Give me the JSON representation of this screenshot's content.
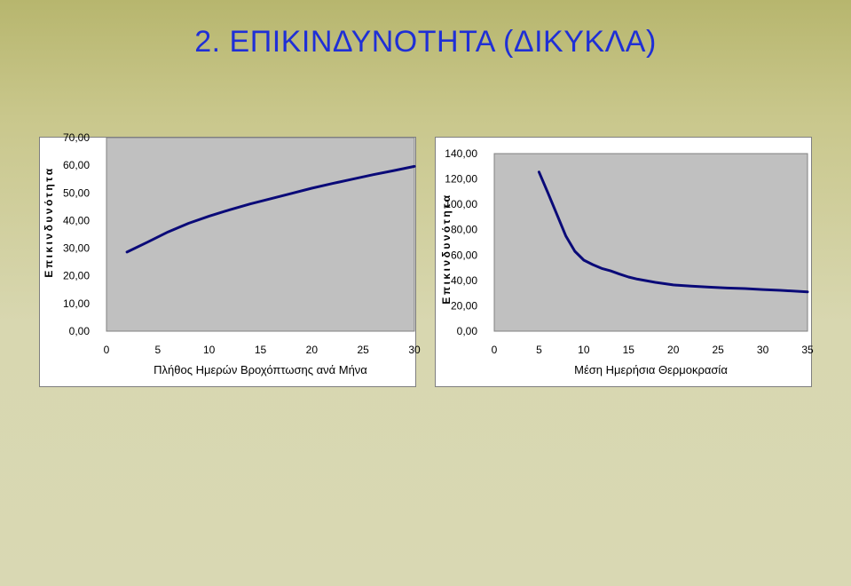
{
  "slide": {
    "title": "2. ΕΠΙΚΙΝΔΥΝΟΤΗΤΑ (ΔΙΚΥΚΛΑ)"
  },
  "colors": {
    "line": "#0a0a78",
    "plot_area": "#c0c0c0",
    "title": "#1f2fd6"
  },
  "chart_data": [
    {
      "type": "line",
      "title": "",
      "xlabel": "Πλήθος Ημερών Βροχόπτωσης ανά Μήνα",
      "ylabel": "Επικινδυνότητα",
      "xlim": [
        0,
        30
      ],
      "ylim": [
        0,
        70
      ],
      "x_ticks": [
        "0",
        "5",
        "10",
        "15",
        "20",
        "25",
        "30"
      ],
      "y_ticks": [
        "0,00",
        "10,00",
        "20,00",
        "30,00",
        "40,00",
        "50,00",
        "60,00",
        "70,00"
      ],
      "grid": false,
      "legend": "none",
      "series": [
        {
          "x": [
            2,
            4,
            6,
            8,
            10,
            12,
            14,
            16,
            18,
            20,
            22,
            24,
            26,
            28,
            30
          ],
          "y": [
            28.6,
            32.2,
            35.9,
            39.0,
            41.6,
            43.9,
            46.0,
            47.9,
            49.8,
            51.7,
            53.4,
            55.0,
            56.6,
            58.1,
            59.6
          ]
        }
      ]
    },
    {
      "type": "line",
      "title": "",
      "xlabel": "Μέση Ημερήσια Θερμοκρασία",
      "ylabel": "Επικινδυνότητα",
      "xlim": [
        0,
        35
      ],
      "ylim": [
        0,
        140
      ],
      "x_ticks": [
        "0",
        "5",
        "10",
        "15",
        "20",
        "25",
        "30",
        "35"
      ],
      "y_ticks": [
        "0,00",
        "20,00",
        "40,00",
        "60,00",
        "80,00",
        "100,00",
        "120,00",
        "140,00"
      ],
      "grid": false,
      "legend": "none",
      "series": [
        {
          "x": [
            5,
            6,
            7,
            8,
            9,
            10,
            11,
            12,
            13,
            14,
            15,
            16,
            18,
            20,
            22,
            24,
            26,
            28,
            30,
            32,
            35
          ],
          "y": [
            125.5,
            109,
            92,
            75,
            63,
            56,
            52.5,
            49.5,
            47.5,
            45,
            42.7,
            41,
            38.5,
            36.5,
            35.5,
            34.7,
            34,
            33.6,
            32.8,
            32.2,
            31
          ]
        }
      ]
    }
  ]
}
